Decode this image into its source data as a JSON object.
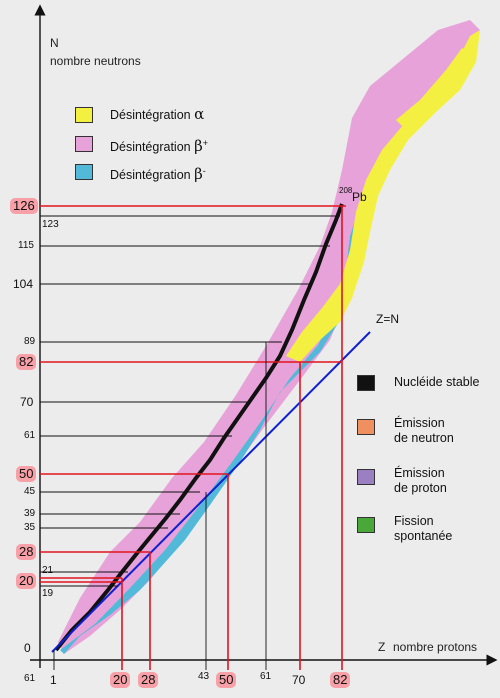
{
  "axes": {
    "y_letter": "N",
    "y_title": "nombre neutrons",
    "x_letter": "Z",
    "x_title": "nombre protons"
  },
  "magic_numbers_n": [
    "126",
    "82",
    "50",
    "28",
    "20"
  ],
  "magic_numbers_z": [
    "20",
    "28",
    "50",
    "82"
  ],
  "other_ticks_n": [
    "123",
    "115",
    "104",
    "89",
    "70",
    "61",
    "45",
    "39",
    "35",
    "21",
    "19",
    "0"
  ],
  "other_ticks_z": [
    "1",
    "43",
    "61",
    "70"
  ],
  "corner_label": "61",
  "annotation_pb_mass": "208",
  "annotation_pb": "Pb",
  "annotation_zn": "Z=N",
  "legend_top": [
    {
      "label": "Désintégration",
      "symbol": "α",
      "sup": "",
      "color": "#f4f042"
    },
    {
      "label": "Désintégration",
      "symbol": "β",
      "sup": "+",
      "color": "#e7a3d9"
    },
    {
      "label": "Désintégration",
      "symbol": "β",
      "sup": "-",
      "color": "#52b9d9"
    }
  ],
  "legend_right": [
    {
      "line1": "Nucléide stable",
      "line2": "",
      "color": "#111111"
    },
    {
      "line1": "Émission",
      "line2": "de neutron",
      "color": "#f09060"
    },
    {
      "line1": "Émission",
      "line2": "de proton",
      "color": "#9a7fc2"
    },
    {
      "line1": "Fission",
      "line2": "spontanée",
      "color": "#4aa83a"
    }
  ],
  "colors": {
    "alpha": "#f4f042",
    "beta_plus": "#e7a3d9",
    "beta_minus": "#52b9d9",
    "stable": "#111111",
    "neutron_emission": "#f09060",
    "proton_emission": "#9a7fc2",
    "fission": "#4aa83a",
    "magic_line": "#e0141e",
    "zn_line": "#1020d0"
  }
}
